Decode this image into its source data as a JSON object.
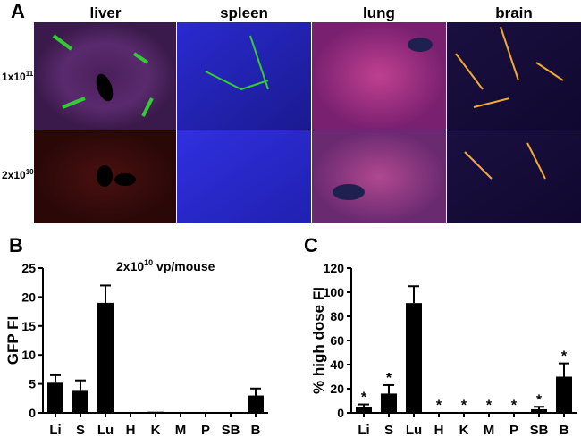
{
  "panel_a": {
    "label": "A",
    "columns": [
      "liver",
      "spleen",
      "lung",
      "brain"
    ],
    "rows": [
      [
        "1x10",
        "11"
      ],
      [
        "2x10",
        "10"
      ]
    ]
  },
  "chart_data": [
    {
      "type": "bar",
      "panel": "B",
      "title": [
        "2x10",
        "10",
        " vp/mouse"
      ],
      "ylabel": "GFP FI",
      "categories": [
        "Li",
        "S",
        "Lu",
        "H",
        "K",
        "M",
        "P",
        "SB",
        "B"
      ],
      "values": [
        5.2,
        3.8,
        19,
        0.1,
        0.2,
        0,
        0,
        0.1,
        3
      ],
      "errors": [
        1.3,
        1.8,
        3,
        0,
        0,
        0,
        0,
        0,
        1.2
      ],
      "color": "#000000",
      "ylim": [
        0,
        25
      ],
      "yticks": [
        0,
        5,
        10,
        15,
        20,
        25
      ]
    },
    {
      "type": "bar",
      "panel": "C",
      "ylabel": "% high dose FI",
      "categories": [
        "Li",
        "S",
        "Lu",
        "H",
        "K",
        "M",
        "P",
        "SB",
        "B"
      ],
      "values": [
        5,
        16,
        91,
        0.5,
        0.5,
        0.3,
        0.3,
        3,
        30
      ],
      "errors": [
        2,
        7,
        14,
        0,
        0,
        0,
        0,
        2,
        11
      ],
      "annotations": [
        "*",
        "*",
        null,
        "*",
        "*",
        "*",
        "*",
        "*",
        "*"
      ],
      "color": "#000000",
      "ylim": [
        0,
        120
      ],
      "yticks": [
        0,
        20,
        40,
        60,
        80,
        100,
        120
      ]
    }
  ]
}
